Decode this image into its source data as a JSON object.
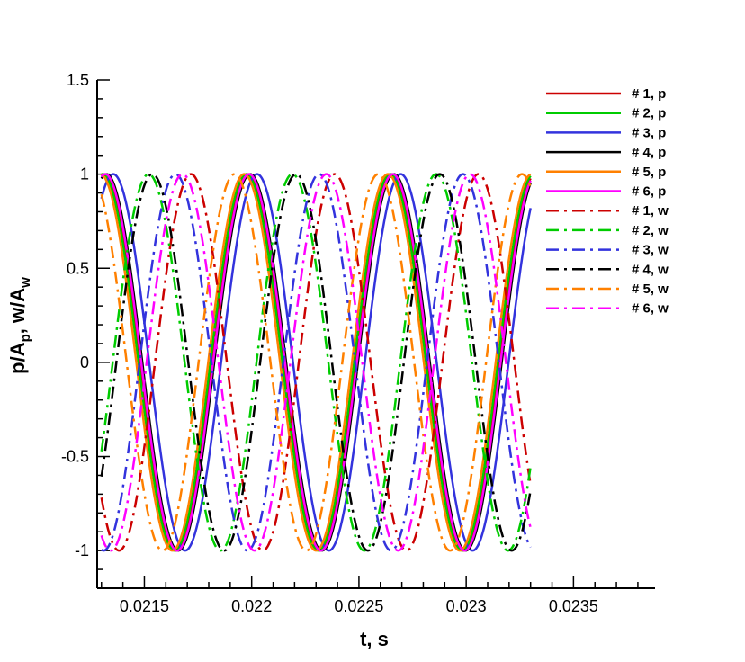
{
  "chart_data": {
    "type": "line",
    "xlabel": "t, s",
    "ylabel_parts": [
      "p/A",
      "p",
      ", w/A",
      "w"
    ],
    "xlim": [
      0.02128,
      0.02388
    ],
    "ylim": [
      -1.2,
      1.5
    ],
    "x_ticks": [
      0.0215,
      0.022,
      0.0225,
      0.023,
      0.0235
    ],
    "x_tick_labels": [
      "0.0215",
      "0.022",
      "0.0225",
      "0.023",
      "0.0235"
    ],
    "y_ticks": [
      -1,
      -0.5,
      0,
      0.5,
      1,
      1.5
    ],
    "y_tick_labels": [
      "-1",
      "-0.5",
      "0",
      "0.5",
      "1",
      "1.5"
    ],
    "grid": false,
    "legend_position": "top-right",
    "t_range": [
      0.0213,
      0.0233
    ],
    "period": 0.00067,
    "series": [
      {
        "name": "# 1, p",
        "color": "#cc0000",
        "style": "solid",
        "peak_t": 0.021983
      },
      {
        "name": "# 2, p",
        "color": "#00cc00",
        "style": "solid",
        "peak_t": 0.021975
      },
      {
        "name": "# 3, p",
        "color": "#3333dd",
        "style": "solid",
        "peak_t": 0.022025
      },
      {
        "name": "# 4, p",
        "color": "#000000",
        "style": "solid",
        "peak_t": 0.021993
      },
      {
        "name": "# 5, p",
        "color": "#ff8000",
        "style": "solid",
        "peak_t": 0.021965
      },
      {
        "name": "# 6, p",
        "color": "#ff00ff",
        "style": "solid",
        "peak_t": 0.021988
      },
      {
        "name": "# 1, w",
        "color": "#cc0000",
        "style": "dashdot",
        "peak_t": 0.022387
      },
      {
        "name": "# 2, w",
        "color": "#00cc00",
        "style": "dashdot",
        "peak_t": 0.02219
      },
      {
        "name": "# 3, w",
        "color": "#3333dd",
        "style": "dashdot",
        "peak_t": 0.021645
      },
      {
        "name": "# 4, w",
        "color": "#000000",
        "style": "dashdot",
        "peak_t": 0.022207
      },
      {
        "name": "# 5, w",
        "color": "#ff8000",
        "style": "dashdot",
        "peak_t": 0.02192
      },
      {
        "name": "# 6, w",
        "color": "#ff00ff",
        "style": "dashdot",
        "peak_t": 0.022348
      }
    ]
  }
}
